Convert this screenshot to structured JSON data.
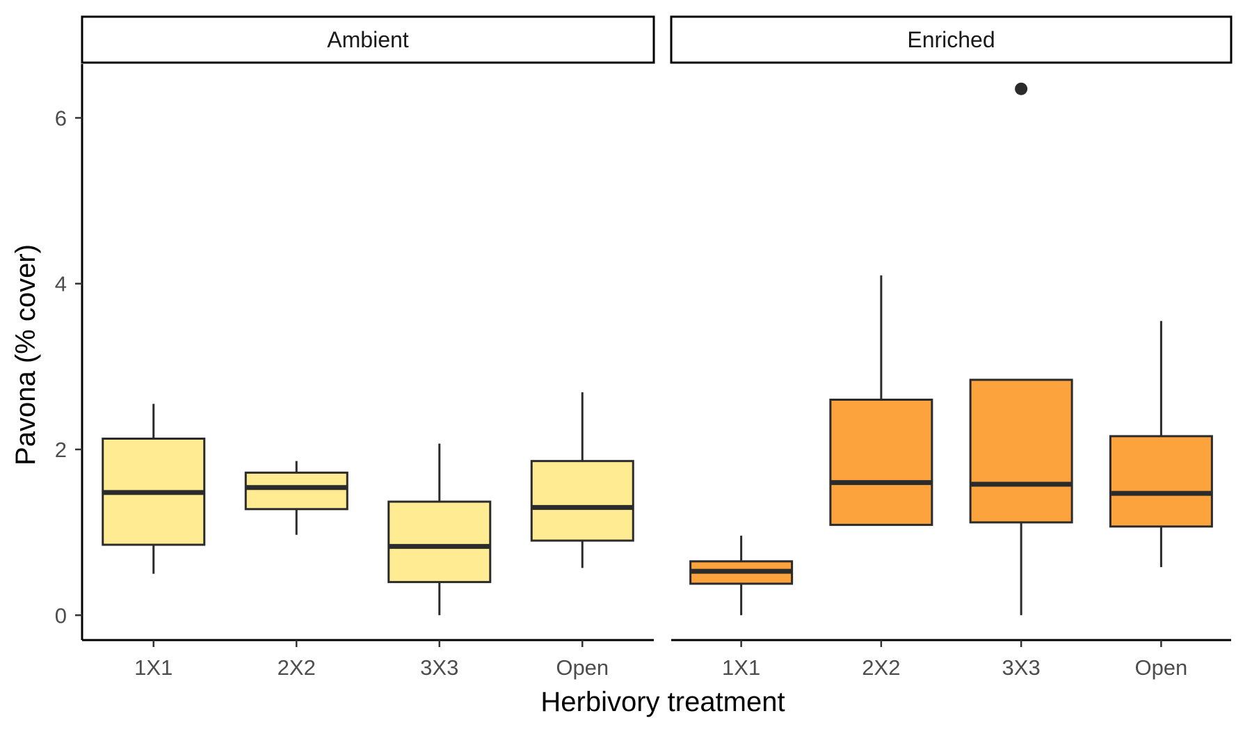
{
  "chart_data": {
    "type": "boxplot",
    "xlabel": "Herbivory treatment",
    "ylabel": "Pavona (% cover)",
    "ylim": [
      -0.3,
      6.65
    ],
    "yticks": [
      0,
      2,
      4,
      6
    ],
    "categories": [
      "1X1",
      "2X2",
      "3X3",
      "Open"
    ],
    "panels": [
      {
        "name": "Ambient",
        "color": "#ffeb91",
        "boxes": [
          {
            "category": "1X1",
            "lower_whisker": 0.5,
            "q1": 0.85,
            "median": 1.48,
            "q3": 2.13,
            "upper_whisker": 2.55,
            "outliers": []
          },
          {
            "category": "2X2",
            "lower_whisker": 0.97,
            "q1": 1.28,
            "median": 1.54,
            "q3": 1.72,
            "upper_whisker": 1.86,
            "outliers": []
          },
          {
            "category": "3X3",
            "lower_whisker": 0.0,
            "q1": 0.4,
            "median": 0.83,
            "q3": 1.37,
            "upper_whisker": 2.07,
            "outliers": []
          },
          {
            "category": "Open",
            "lower_whisker": 0.57,
            "q1": 0.9,
            "median": 1.3,
            "q3": 1.86,
            "upper_whisker": 2.69,
            "outliers": []
          }
        ]
      },
      {
        "name": "Enriched",
        "color": "#fca33d",
        "boxes": [
          {
            "category": "1X1",
            "lower_whisker": 0.0,
            "q1": 0.38,
            "median": 0.53,
            "q3": 0.65,
            "upper_whisker": 0.96,
            "outliers": []
          },
          {
            "category": "2X2",
            "lower_whisker": 1.09,
            "q1": 1.09,
            "median": 1.6,
            "q3": 2.6,
            "upper_whisker": 4.1,
            "outliers": []
          },
          {
            "category": "3X3",
            "lower_whisker": 0.0,
            "q1": 1.12,
            "median": 1.58,
            "q3": 2.84,
            "upper_whisker": 2.84,
            "outliers": [
              6.35
            ]
          },
          {
            "category": "Open",
            "lower_whisker": 0.58,
            "q1": 1.07,
            "median": 1.47,
            "q3": 2.16,
            "upper_whisker": 3.55,
            "outliers": []
          }
        ]
      }
    ],
    "grid": false,
    "legend": "none",
    "colors": {
      "ambient_fill": "#ffeb91",
      "enriched_fill": "#fca33d",
      "box_stroke": "#2b2b2b",
      "axis": "#000000"
    }
  }
}
